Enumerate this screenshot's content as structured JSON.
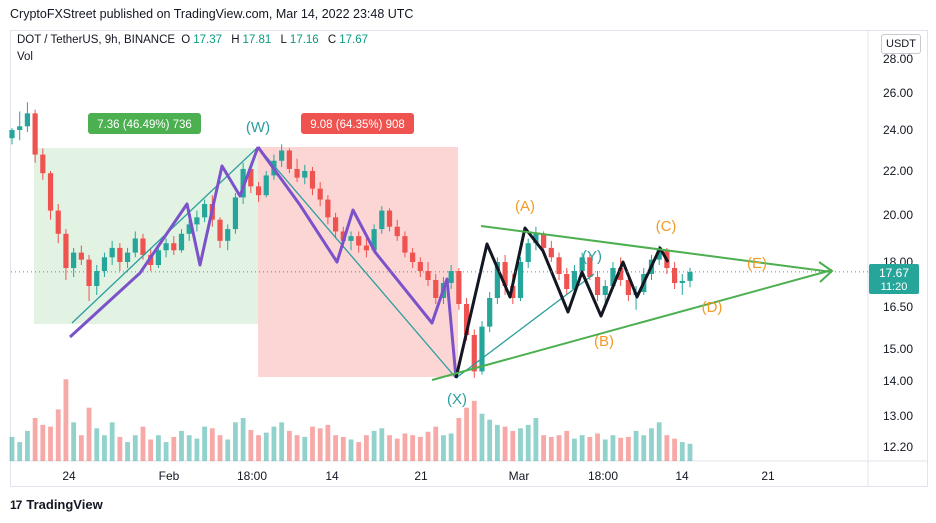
{
  "header": {
    "published": "CryptoFXStreet published on TradingView.com, Mar 14, 2022 23:48 UTC"
  },
  "legend": {
    "symbol": "DOT / TetherUS, 9h, BINANCE",
    "o_label": "O",
    "o": "17.37",
    "h_label": "H",
    "h": "17.81",
    "l_label": "L",
    "l": "17.16",
    "c_label": "C",
    "c": "17.67",
    "vol": "Vol"
  },
  "currency_button": "USDT",
  "footer": {
    "brand": "TradingView",
    "logo": "17"
  },
  "colors": {
    "up": "#26a69a",
    "down": "#ef5350",
    "wave": "#7b52c9",
    "trend": "#4caf50",
    "label_orange": "#f29b27",
    "label_teal": "#2a9d9f"
  },
  "chart_data": {
    "type": "candlestick",
    "xlabels": [
      "24",
      "Feb",
      "18:00",
      "14",
      "21",
      "Mar",
      "18:00",
      "14",
      "21"
    ],
    "ylabels": [
      "28.00",
      "26.00",
      "24.00",
      "22.00",
      "20.00",
      "18.00",
      "16.50",
      "15.00",
      "14.00",
      "13.00",
      "12.20"
    ],
    "last_price": "17.67",
    "countdown": "11:20",
    "measure_boxes": [
      {
        "text": "7.36 (46.49%) 736",
        "color": "#4caf50"
      },
      {
        "text": "9.08 (64.35%) 908",
        "color": "#ef5350"
      }
    ],
    "wave_labels": [
      {
        "text": "(W)",
        "color": "#2a9d9f"
      },
      {
        "text": "(X)",
        "color": "#2a9d9f"
      },
      {
        "text": "(A)",
        "color": "#f29b27"
      },
      {
        "text": "(B)",
        "color": "#f29b27"
      },
      {
        "text": "(Y)",
        "color": "#2a9d9f"
      },
      {
        "text": "(C)",
        "color": "#f29b27"
      },
      {
        "text": "(D)",
        "color": "#f29b27"
      },
      {
        "text": "(E)",
        "color": "#f29b27"
      }
    ],
    "candles": [
      [
        23.6,
        24.1,
        23.3,
        24.0
      ],
      [
        24.0,
        25.0,
        23.5,
        24.2
      ],
      [
        24.2,
        25.5,
        23.9,
        24.9
      ],
      [
        24.9,
        25.1,
        22.4,
        22.8
      ],
      [
        22.8,
        23.1,
        21.6,
        21.9
      ],
      [
        21.9,
        22.0,
        19.8,
        20.2
      ],
      [
        20.2,
        20.5,
        18.8,
        19.2
      ],
      [
        19.2,
        19.4,
        17.4,
        17.8
      ],
      [
        17.8,
        18.6,
        17.5,
        18.4
      ],
      [
        18.4,
        18.7,
        17.9,
        18.1
      ],
      [
        18.1,
        18.3,
        16.7,
        17.2
      ],
      [
        17.2,
        17.9,
        16.9,
        17.7
      ],
      [
        17.7,
        18.4,
        17.5,
        18.2
      ],
      [
        18.2,
        18.9,
        17.9,
        18.6
      ],
      [
        18.6,
        18.8,
        17.7,
        18.0
      ],
      [
        18.0,
        18.6,
        17.8,
        18.4
      ],
      [
        18.4,
        19.3,
        18.2,
        19.0
      ],
      [
        19.0,
        19.2,
        18.1,
        18.3
      ],
      [
        18.3,
        18.6,
        17.7,
        17.9
      ],
      [
        17.9,
        18.7,
        17.8,
        18.5
      ],
      [
        18.5,
        19.0,
        18.2,
        18.8
      ],
      [
        18.8,
        19.1,
        18.3,
        18.5
      ],
      [
        18.5,
        19.4,
        18.4,
        19.2
      ],
      [
        19.2,
        19.9,
        18.9,
        19.6
      ],
      [
        19.6,
        20.2,
        19.3,
        19.9
      ],
      [
        19.9,
        20.7,
        19.7,
        20.5
      ],
      [
        20.5,
        20.9,
        19.5,
        19.8
      ],
      [
        19.8,
        19.9,
        18.6,
        18.9
      ],
      [
        18.9,
        19.6,
        18.5,
        19.4
      ],
      [
        19.4,
        21.0,
        19.2,
        20.8
      ],
      [
        20.8,
        22.4,
        20.5,
        22.1
      ],
      [
        22.1,
        22.3,
        21.0,
        21.3
      ],
      [
        21.3,
        21.5,
        20.6,
        20.9
      ],
      [
        20.9,
        22.0,
        20.8,
        21.8
      ],
      [
        21.8,
        22.8,
        21.6,
        22.5
      ],
      [
        22.5,
        23.3,
        22.2,
        23.0
      ],
      [
        23.0,
        23.1,
        21.9,
        22.1
      ],
      [
        22.1,
        22.6,
        21.5,
        21.7
      ],
      [
        21.7,
        22.3,
        21.4,
        22.0
      ],
      [
        22.0,
        22.2,
        20.9,
        21.2
      ],
      [
        21.2,
        21.5,
        20.4,
        20.7
      ],
      [
        20.7,
        20.9,
        19.6,
        19.9
      ],
      [
        19.9,
        20.1,
        19.0,
        19.3
      ],
      [
        19.3,
        19.5,
        18.6,
        18.9
      ],
      [
        18.9,
        19.3,
        18.5,
        19.1
      ],
      [
        19.1,
        19.3,
        18.4,
        18.7
      ],
      [
        18.7,
        19.0,
        18.2,
        18.5
      ],
      [
        18.5,
        19.6,
        18.4,
        19.4
      ],
      [
        19.4,
        20.4,
        19.2,
        20.2
      ],
      [
        20.2,
        20.3,
        19.3,
        19.5
      ],
      [
        19.5,
        19.8,
        18.9,
        19.1
      ],
      [
        19.1,
        19.3,
        18.2,
        18.4
      ],
      [
        18.4,
        18.6,
        17.8,
        18.0
      ],
      [
        18.0,
        18.2,
        17.5,
        17.7
      ],
      [
        17.7,
        18.0,
        17.2,
        17.4
      ],
      [
        17.4,
        17.6,
        16.6,
        16.8
      ],
      [
        16.8,
        17.5,
        16.6,
        17.3
      ],
      [
        17.3,
        17.9,
        17.1,
        17.7
      ],
      [
        17.7,
        17.8,
        16.4,
        16.6
      ],
      [
        16.6,
        16.8,
        15.3,
        15.5
      ],
      [
        15.5,
        15.7,
        14.1,
        14.3
      ],
      [
        14.3,
        16.0,
        14.2,
        15.8
      ],
      [
        15.8,
        17.0,
        15.6,
        16.8
      ],
      [
        16.8,
        18.2,
        16.6,
        18.0
      ],
      [
        18.0,
        18.3,
        16.9,
        17.2
      ],
      [
        17.2,
        17.6,
        16.6,
        16.8
      ],
      [
        16.8,
        18.2,
        16.7,
        18.0
      ],
      [
        18.0,
        19.0,
        17.8,
        18.8
      ],
      [
        18.8,
        19.5,
        18.5,
        19.2
      ],
      [
        19.2,
        19.3,
        18.4,
        18.6
      ],
      [
        18.6,
        18.9,
        18.0,
        18.2
      ],
      [
        18.2,
        18.4,
        17.4,
        17.6
      ],
      [
        17.6,
        17.8,
        16.9,
        17.1
      ],
      [
        17.1,
        17.9,
        17.0,
        17.7
      ],
      [
        17.7,
        18.4,
        17.5,
        18.2
      ],
      [
        18.2,
        18.3,
        17.4,
        17.5
      ],
      [
        17.5,
        17.7,
        16.7,
        16.9
      ],
      [
        16.9,
        17.4,
        16.6,
        17.2
      ],
      [
        17.2,
        18.0,
        17.1,
        17.8
      ],
      [
        17.8,
        18.2,
        17.2,
        17.4
      ],
      [
        17.4,
        17.6,
        16.7,
        16.9
      ],
      [
        16.9,
        17.2,
        16.4,
        17.0
      ],
      [
        17.0,
        17.8,
        16.9,
        17.6
      ],
      [
        17.6,
        18.3,
        17.4,
        18.1
      ],
      [
        18.1,
        18.7,
        17.9,
        18.5
      ],
      [
        18.5,
        18.6,
        17.6,
        17.8
      ],
      [
        17.8,
        18.0,
        17.1,
        17.3
      ],
      [
        17.3,
        17.6,
        16.9,
        17.37
      ],
      [
        17.37,
        17.81,
        17.16,
        17.67
      ]
    ],
    "volumes": [
      0.28,
      0.22,
      0.35,
      0.5,
      0.42,
      0.4,
      0.6,
      0.95,
      0.45,
      0.3,
      0.62,
      0.38,
      0.3,
      0.45,
      0.28,
      0.22,
      0.3,
      0.4,
      0.25,
      0.3,
      0.22,
      0.28,
      0.35,
      0.3,
      0.26,
      0.4,
      0.38,
      0.3,
      0.25,
      0.45,
      0.5,
      0.36,
      0.3,
      0.33,
      0.4,
      0.45,
      0.35,
      0.3,
      0.28,
      0.4,
      0.38,
      0.42,
      0.3,
      0.28,
      0.25,
      0.22,
      0.3,
      0.35,
      0.38,
      0.3,
      0.26,
      0.32,
      0.3,
      0.28,
      0.34,
      0.4,
      0.3,
      0.32,
      0.5,
      0.62,
      0.7,
      0.55,
      0.48,
      0.42,
      0.4,
      0.35,
      0.38,
      0.42,
      0.5,
      0.3,
      0.28,
      0.3,
      0.35,
      0.26,
      0.3,
      0.28,
      0.32,
      0.25,
      0.3,
      0.27,
      0.28,
      0.35,
      0.3,
      0.38,
      0.45,
      0.3,
      0.26,
      0.22,
      0.2
    ]
  }
}
